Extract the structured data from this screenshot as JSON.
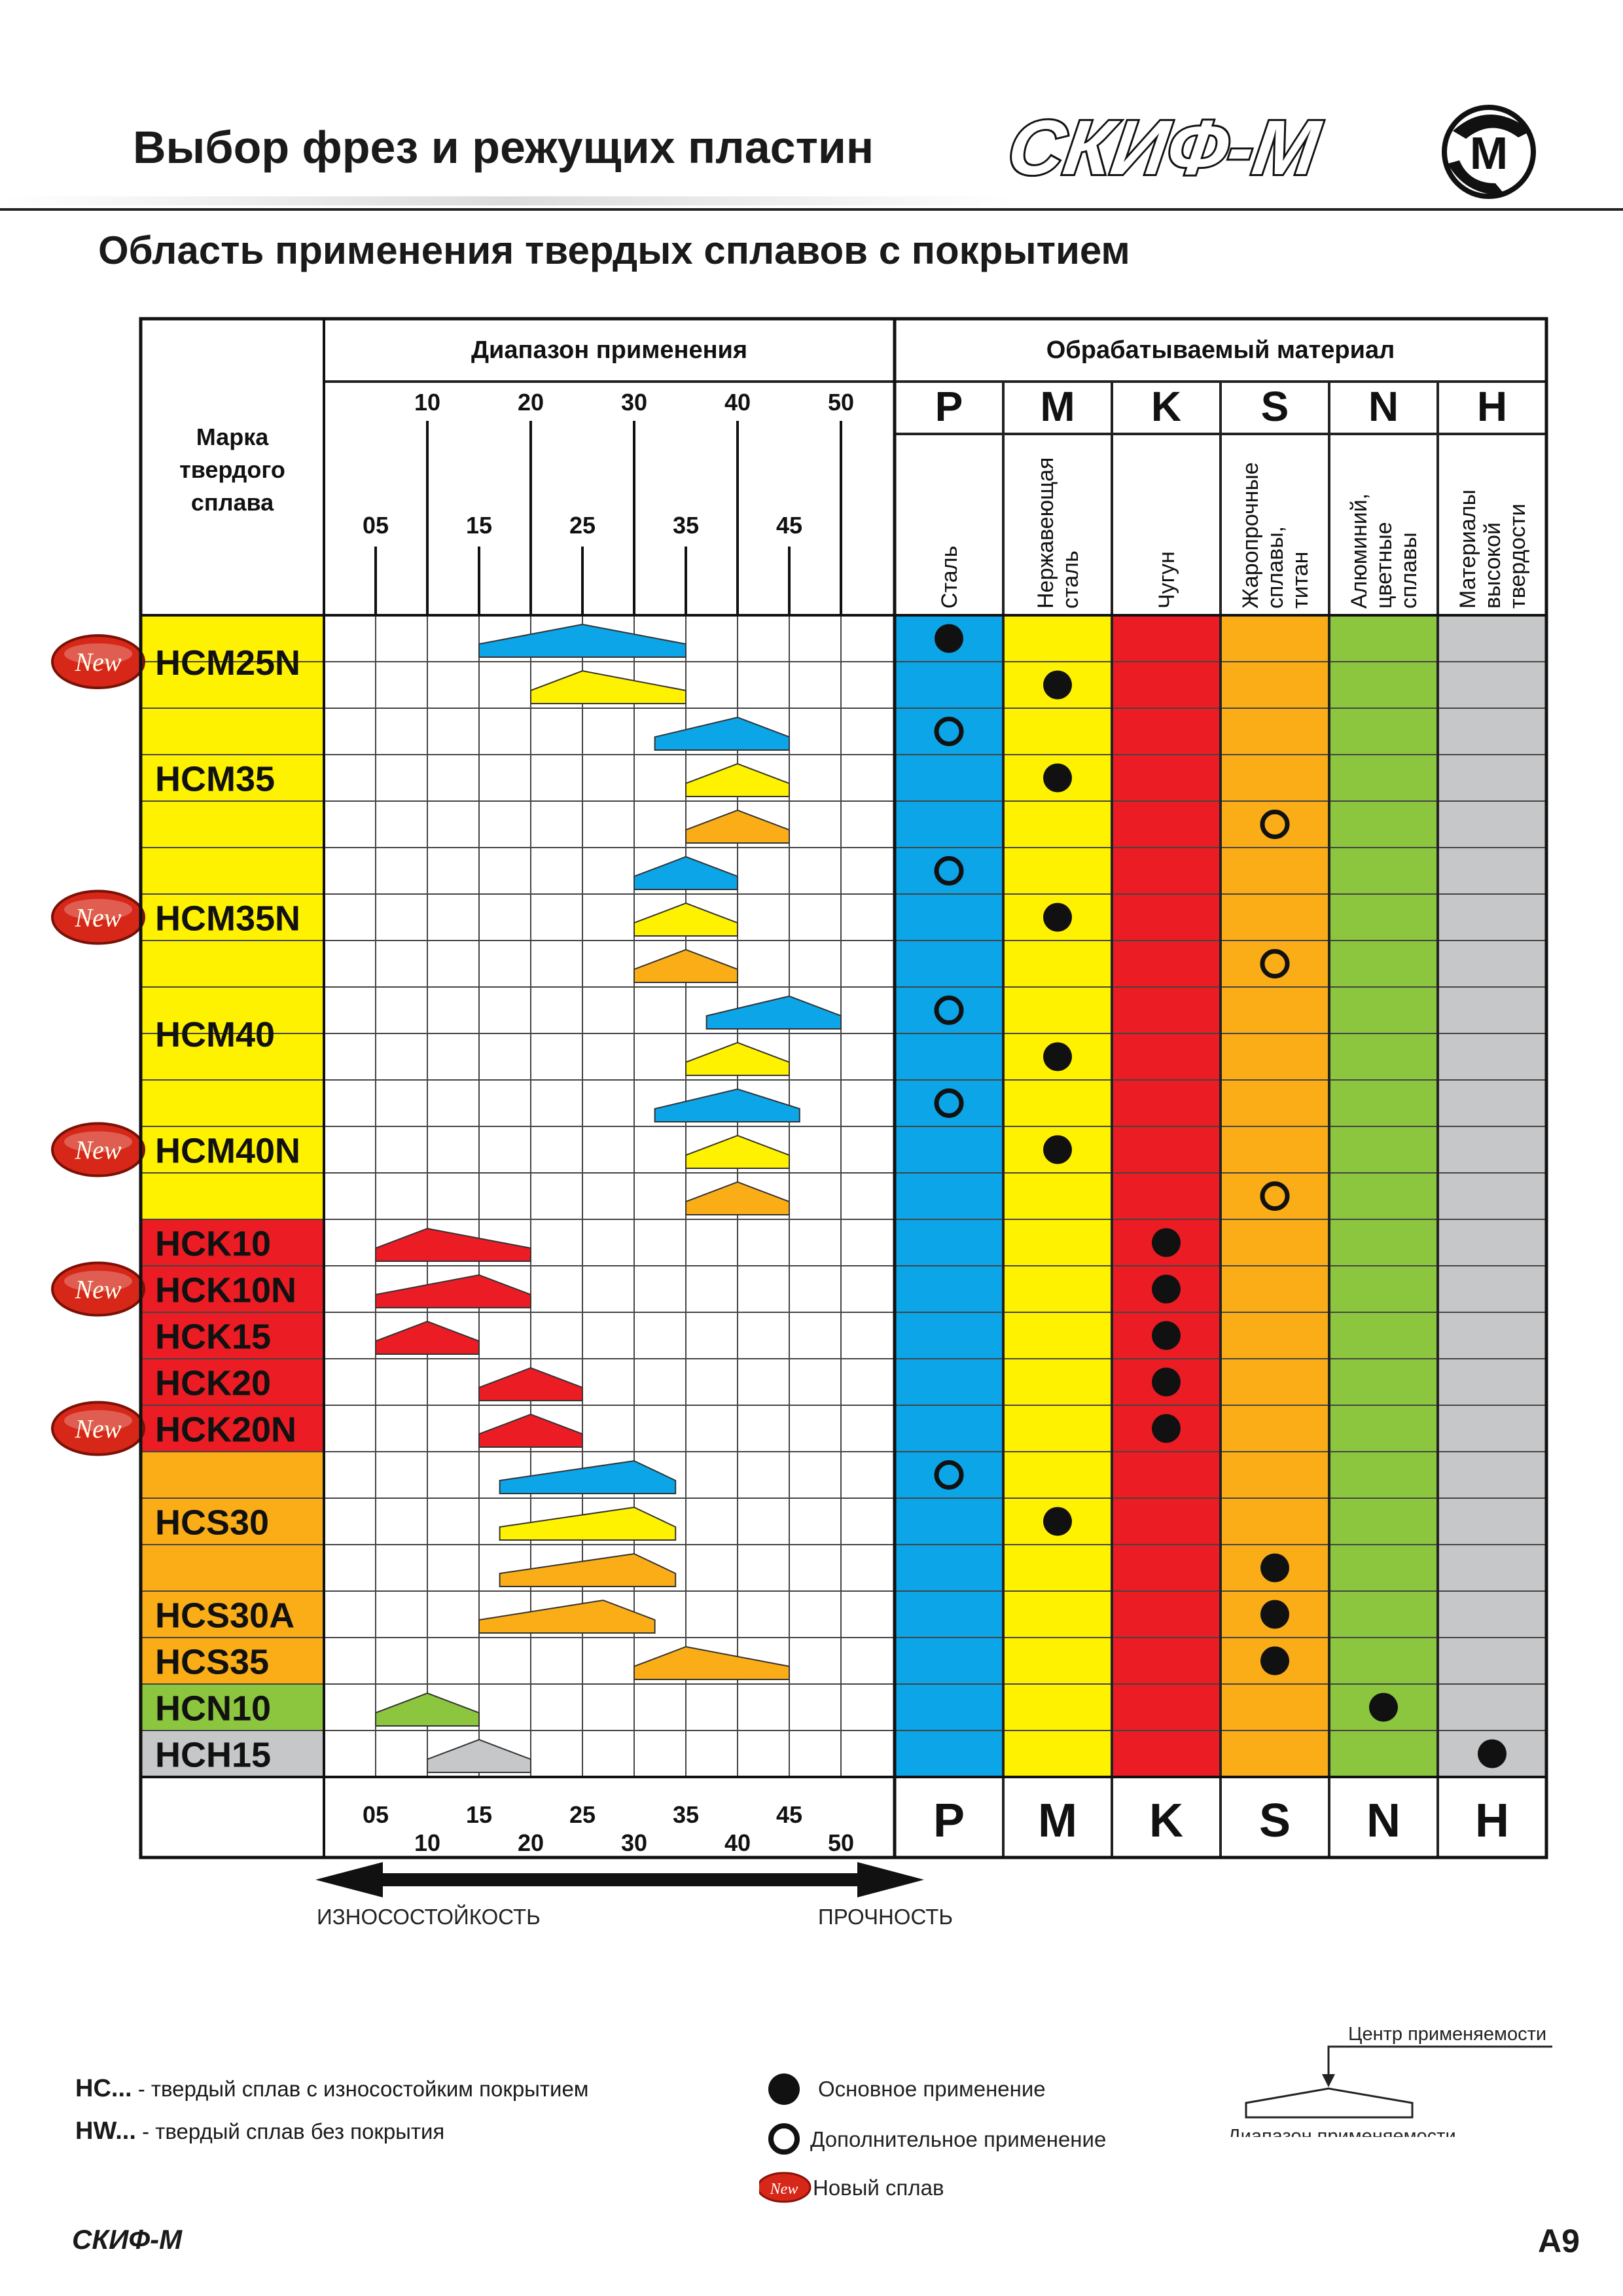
{
  "header": {
    "title": "Выбор фрез и режущих пластин",
    "logo_text": "СКИФ-М",
    "logo_mark": "M"
  },
  "section_title": "Область применения твердых сплавов с покрытием",
  "table": {
    "col_grade_header": [
      "Марка",
      "твердого",
      "сплава"
    ],
    "range_header": "Диапазон применения",
    "material_header": "Обрабатываемый материал",
    "scale_top_major": [
      "10",
      "20",
      "30",
      "40",
      "50"
    ],
    "scale_top_minor": [
      "05",
      "15",
      "25",
      "35",
      "45"
    ],
    "materials": [
      {
        "code": "P",
        "lines": [
          "Сталь"
        ],
        "color": "#0ba5e8"
      },
      {
        "code": "M",
        "lines": [
          "Нержавеющая",
          "сталь"
        ],
        "color": "#fff200"
      },
      {
        "code": "K",
        "lines": [
          "Чугун"
        ],
        "color": "#ec1c24"
      },
      {
        "code": "S",
        "lines": [
          "Жаропрочные",
          "сплавы,",
          "титан"
        ],
        "color": "#fbad18"
      },
      {
        "code": "N",
        "lines": [
          "Алюминий,",
          "цветные",
          "сплавы"
        ],
        "color": "#8cc63e"
      },
      {
        "code": "H",
        "lines": [
          "Материалы",
          "высокой",
          "твердости"
        ],
        "color": "#c6c7c9"
      }
    ],
    "new_badge": "New",
    "grades": [
      {
        "name": "HCM25N",
        "color": "#fff200",
        "is_new": true,
        "rows": 2
      },
      {
        "name": "HCM35",
        "color": "#fff200",
        "is_new": false,
        "rows": 3
      },
      {
        "name": "HCM35N",
        "color": "#fff200",
        "is_new": true,
        "rows": 3
      },
      {
        "name": "HCM40",
        "color": "#fff200",
        "is_new": false,
        "rows": 2
      },
      {
        "name": "HCM40N",
        "color": "#fff200",
        "is_new": true,
        "rows": 3
      },
      {
        "name": "HCK10",
        "color": "#ec1c24",
        "is_new": false,
        "rows": 1
      },
      {
        "name": "HCK10N",
        "color": "#ec1c24",
        "is_new": true,
        "rows": 1
      },
      {
        "name": "HCK15",
        "color": "#ec1c24",
        "is_new": false,
        "rows": 1
      },
      {
        "name": "HCK20",
        "color": "#ec1c24",
        "is_new": false,
        "rows": 1
      },
      {
        "name": "HCK20N",
        "color": "#ec1c24",
        "is_new": true,
        "rows": 1
      },
      {
        "name": "HCS30",
        "color": "#fbad18",
        "is_new": false,
        "rows": 3
      },
      {
        "name": "HCS30A",
        "color": "#fbad18",
        "is_new": false,
        "rows": 1
      },
      {
        "name": "HCS35",
        "color": "#fbad18",
        "is_new": false,
        "rows": 1
      },
      {
        "name": "HCN10",
        "color": "#8cc63e",
        "is_new": false,
        "rows": 1
      },
      {
        "name": "HCH15",
        "color": "#c6c7c9",
        "is_new": false,
        "rows": 1
      }
    ],
    "ranges": [
      {
        "row": 0,
        "material": "P",
        "start": 15,
        "center": 25,
        "end": 35
      },
      {
        "row": 1,
        "material": "M",
        "start": 20,
        "center": 25,
        "end": 35
      },
      {
        "row": 2,
        "material": "P",
        "start": 32,
        "center": 40,
        "end": 45
      },
      {
        "row": 3,
        "material": "M",
        "start": 35,
        "center": 40,
        "end": 45
      },
      {
        "row": 4,
        "material": "S",
        "start": 35,
        "center": 40,
        "end": 45
      },
      {
        "row": 5,
        "material": "P",
        "start": 30,
        "center": 35,
        "end": 40
      },
      {
        "row": 6,
        "material": "M",
        "start": 30,
        "center": 35,
        "end": 40
      },
      {
        "row": 7,
        "material": "S",
        "start": 30,
        "center": 35,
        "end": 40
      },
      {
        "row": 8,
        "material": "P",
        "start": 37,
        "center": 45,
        "end": 50
      },
      {
        "row": 9,
        "material": "M",
        "start": 35,
        "center": 40,
        "end": 45
      },
      {
        "row": 10,
        "material": "P",
        "start": 32,
        "center": 40,
        "end": 46
      },
      {
        "row": 11,
        "material": "M",
        "start": 35,
        "center": 40,
        "end": 45
      },
      {
        "row": 12,
        "material": "S",
        "start": 35,
        "center": 40,
        "end": 45
      },
      {
        "row": 13,
        "material": "K",
        "start": 5,
        "center": 10,
        "end": 20
      },
      {
        "row": 14,
        "material": "K",
        "start": 5,
        "center": 15,
        "end": 20
      },
      {
        "row": 15,
        "material": "K",
        "start": 5,
        "center": 10,
        "end": 15
      },
      {
        "row": 16,
        "material": "K",
        "start": 15,
        "center": 20,
        "end": 25
      },
      {
        "row": 17,
        "material": "K",
        "start": 15,
        "center": 20,
        "end": 25
      },
      {
        "row": 18,
        "material": "P",
        "start": 17,
        "center": 30,
        "end": 34
      },
      {
        "row": 19,
        "material": "M",
        "start": 17,
        "center": 30,
        "end": 34
      },
      {
        "row": 20,
        "material": "S",
        "start": 17,
        "center": 30,
        "end": 34
      },
      {
        "row": 21,
        "material": "S",
        "start": 15,
        "center": 27,
        "end": 32
      },
      {
        "row": 22,
        "material": "S",
        "start": 30,
        "center": 35,
        "end": 45
      },
      {
        "row": 23,
        "material": "N",
        "start": 5,
        "center": 10,
        "end": 15
      },
      {
        "row": 24,
        "material": "H",
        "start": 10,
        "center": 15,
        "end": 20
      }
    ],
    "marks": [
      {
        "row": 0,
        "material": "P",
        "type": "main"
      },
      {
        "row": 1,
        "material": "M",
        "type": "main"
      },
      {
        "row": 2,
        "material": "P",
        "type": "extra"
      },
      {
        "row": 3,
        "material": "M",
        "type": "main"
      },
      {
        "row": 4,
        "material": "S",
        "type": "extra"
      },
      {
        "row": 5,
        "material": "P",
        "type": "extra"
      },
      {
        "row": 6,
        "material": "M",
        "type": "main"
      },
      {
        "row": 7,
        "material": "S",
        "type": "extra"
      },
      {
        "row": 8,
        "material": "P",
        "type": "extra"
      },
      {
        "row": 9,
        "material": "M",
        "type": "main"
      },
      {
        "row": 10,
        "material": "P",
        "type": "extra"
      },
      {
        "row": 11,
        "material": "M",
        "type": "main"
      },
      {
        "row": 12,
        "material": "S",
        "type": "extra"
      },
      {
        "row": 13,
        "material": "K",
        "type": "main"
      },
      {
        "row": 14,
        "material": "K",
        "type": "main"
      },
      {
        "row": 15,
        "material": "K",
        "type": "main"
      },
      {
        "row": 16,
        "material": "K",
        "type": "main"
      },
      {
        "row": 17,
        "material": "K",
        "type": "main"
      },
      {
        "row": 18,
        "material": "P",
        "type": "extra"
      },
      {
        "row": 19,
        "material": "M",
        "type": "main"
      },
      {
        "row": 20,
        "material": "S",
        "type": "main"
      },
      {
        "row": 21,
        "material": "S",
        "type": "main"
      },
      {
        "row": 22,
        "material": "S",
        "type": "main"
      },
      {
        "row": 23,
        "material": "N",
        "type": "main"
      },
      {
        "row": 24,
        "material": "H",
        "type": "main"
      }
    ],
    "scale_bottom_minor": [
      "05",
      "15",
      "25",
      "35",
      "45"
    ],
    "scale_bottom_major": [
      "10",
      "20",
      "30",
      "40",
      "50"
    ],
    "arrow_left_label": "ИЗНОСОСТОЙКОСТЬ",
    "arrow_right_label": "ПРОЧНОСТЬ"
  },
  "legend": {
    "hc_code": "HC...",
    "hc_text": "- твердый сплав с износостойким покрытием",
    "hw_code": "HW...",
    "hw_text": "- твердый сплав без покрытия",
    "main_use": "Основное применение",
    "extra_use": "Дополнительное применение",
    "new_alloy": "Новый сплав",
    "center_label": "Центр применяемости",
    "range_label": "Диапазон применяемости"
  },
  "footer": {
    "brand": "СКИФ-М",
    "page": "A9"
  },
  "colors": {
    "P": "#0ba5e8",
    "M": "#fff200",
    "K": "#ec1c24",
    "S": "#fbad18",
    "N": "#8cc63e",
    "H": "#c6c7c9",
    "badge": "#d62718"
  }
}
